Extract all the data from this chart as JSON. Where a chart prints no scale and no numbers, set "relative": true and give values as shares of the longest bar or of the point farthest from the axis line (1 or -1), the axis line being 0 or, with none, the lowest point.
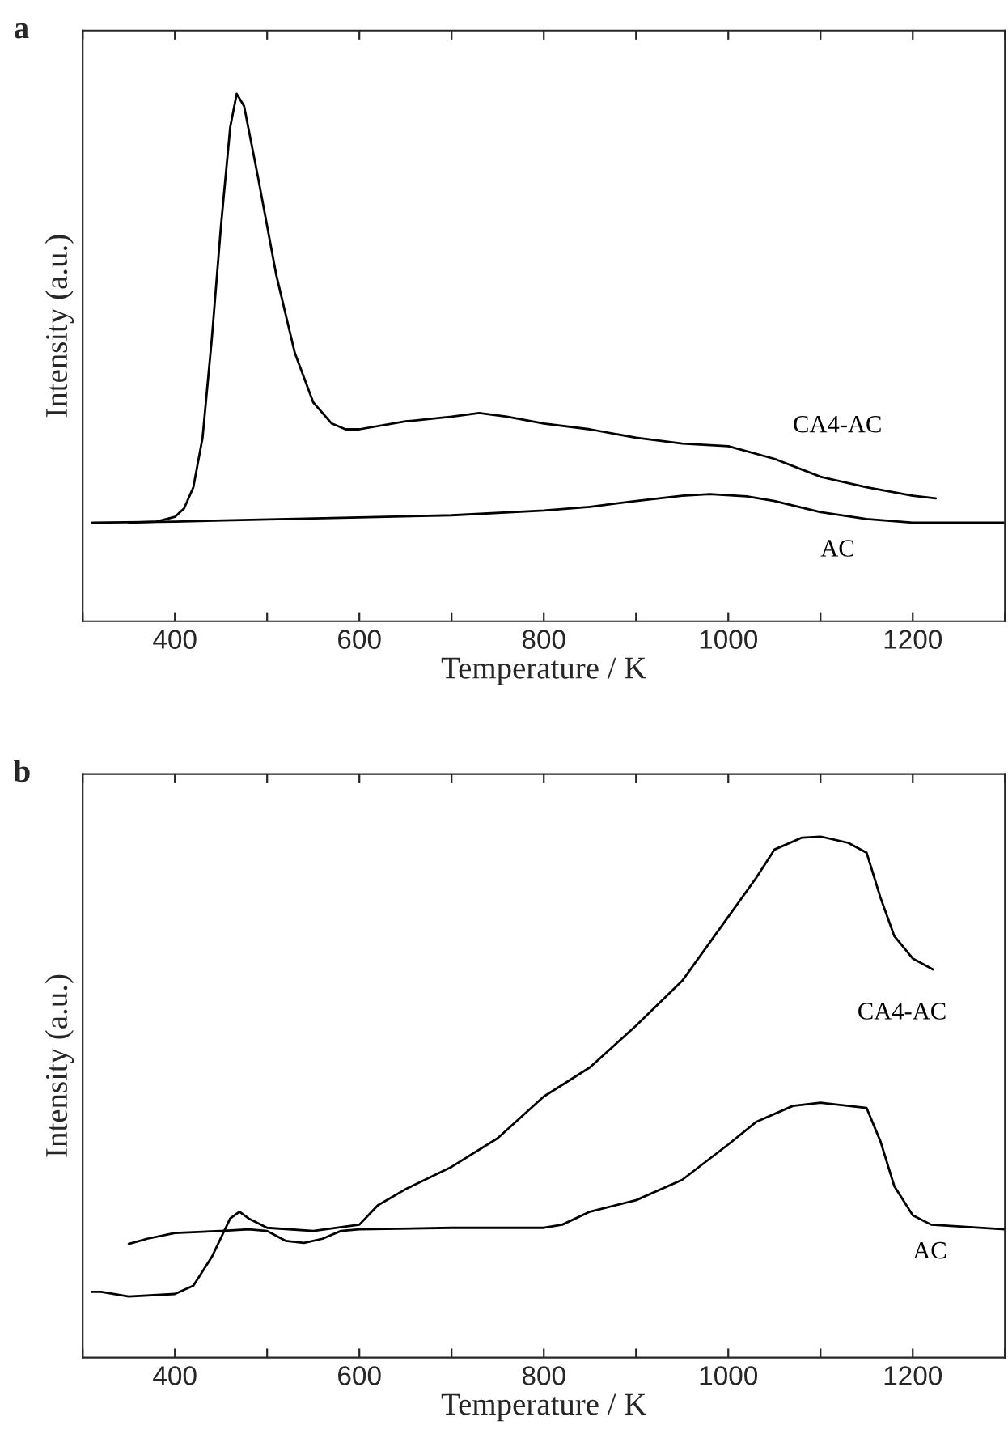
{
  "chart_data": [
    {
      "type": "line",
      "title": "a",
      "xlabel": "Temperature / K",
      "ylabel": "Intensity (a.u.)",
      "relative": true,
      "xlim": [
        300,
        1300
      ],
      "xticks": [
        {
          "value": 300,
          "label": null
        },
        400,
        {
          "value": 500,
          "label": null
        },
        600,
        {
          "value": 700,
          "label": null
        },
        800,
        {
          "value": 900,
          "label": null
        },
        1000,
        {
          "value": 1100,
          "label": null
        },
        1200,
        {
          "value": 1300,
          "label": null
        }
      ],
      "series": [
        {
          "name": "CA4-AC",
          "color": "#000000",
          "x": [
            350,
            380,
            400,
            410,
            420,
            430,
            440,
            450,
            460,
            467,
            475,
            490,
            510,
            530,
            550,
            570,
            585,
            600,
            650,
            700,
            730,
            760,
            800,
            850,
            900,
            950,
            1000,
            1050,
            1100,
            1150,
            1200,
            1225
          ],
          "values": [
            0.187,
            0.189,
            0.198,
            0.214,
            0.254,
            0.348,
            0.535,
            0.75,
            0.937,
            1,
            0.977,
            0.843,
            0.656,
            0.509,
            0.415,
            0.375,
            0.364,
            0.364,
            0.379,
            0.388,
            0.395,
            0.388,
            0.375,
            0.364,
            0.348,
            0.337,
            0.332,
            0.308,
            0.274,
            0.254,
            0.238,
            0.233
          ]
        },
        {
          "name": "AC",
          "color": "#000000",
          "x": [
            310,
            400,
            600,
            700,
            800,
            850,
            900,
            950,
            980,
            1020,
            1050,
            1100,
            1150,
            1200,
            1300
          ],
          "values": [
            0.187,
            0.189,
            0.197,
            0.201,
            0.21,
            0.217,
            0.228,
            0.238,
            0.241,
            0.237,
            0.228,
            0.207,
            0.194,
            0.187,
            0.187
          ]
        }
      ]
    },
    {
      "type": "line",
      "title": "b",
      "xlabel": "Temperature / K",
      "ylabel": "Intensity (a.u.)",
      "relative": true,
      "xlim": [
        300,
        1300
      ],
      "xticks": [
        {
          "value": 300,
          "label": null
        },
        400,
        {
          "value": 500,
          "label": null
        },
        600,
        {
          "value": 700,
          "label": null
        },
        800,
        {
          "value": 900,
          "label": null
        },
        1000,
        {
          "value": 1100,
          "label": null
        },
        1200,
        {
          "value": 1300,
          "label": null
        }
      ],
      "series": [
        {
          "name": "CA4-AC",
          "color": "#000000",
          "x": [
            310,
            320,
            350,
            400,
            420,
            440,
            460,
            470,
            480,
            500,
            550,
            600,
            620,
            650,
            700,
            750,
            800,
            850,
            900,
            950,
            1000,
            1030,
            1050,
            1080,
            1100,
            1130,
            1150,
            1165,
            1180,
            1200,
            1222
          ],
          "values": [
            0.126,
            0.126,
            0.117,
            0.122,
            0.138,
            0.193,
            0.267,
            0.28,
            0.267,
            0.249,
            0.243,
            0.255,
            0.292,
            0.323,
            0.366,
            0.421,
            0.501,
            0.557,
            0.637,
            0.723,
            0.846,
            0.92,
            0.975,
            0.998,
            1,
            0.988,
            0.969,
            0.883,
            0.809,
            0.766,
            0.745
          ]
        },
        {
          "name": "AC",
          "color": "#000000",
          "x": [
            350,
            370,
            400,
            450,
            480,
            500,
            520,
            540,
            560,
            580,
            600,
            700,
            800,
            820,
            850,
            900,
            950,
            1000,
            1030,
            1070,
            1100,
            1150,
            1165,
            1180,
            1200,
            1220,
            1300
          ],
          "values": [
            0.218,
            0.228,
            0.239,
            0.243,
            0.246,
            0.243,
            0.224,
            0.22,
            0.228,
            0.243,
            0.246,
            0.249,
            0.249,
            0.255,
            0.28,
            0.302,
            0.341,
            0.409,
            0.452,
            0.483,
            0.489,
            0.479,
            0.415,
            0.329,
            0.273,
            0.255,
            0.246
          ]
        }
      ]
    }
  ]
}
